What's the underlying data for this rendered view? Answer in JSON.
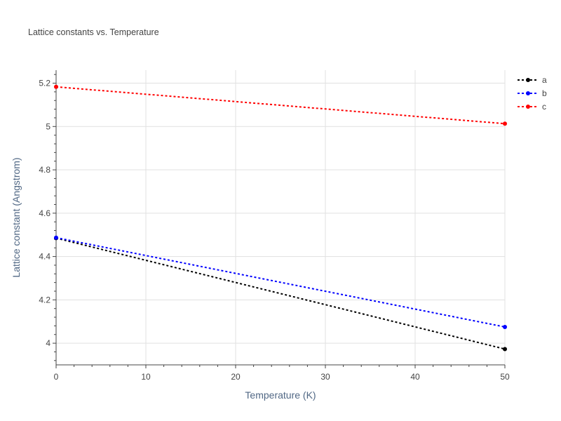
{
  "chart_data": {
    "type": "line",
    "title": "Lattice constants vs. Temperature",
    "xlabel": "Temperature (K)",
    "ylabel": "Lattice constant (Angstrom)",
    "xlim": [
      0,
      50
    ],
    "ylim": [
      3.9,
      5.26
    ],
    "x_ticks": [
      0,
      10,
      20,
      30,
      40,
      50
    ],
    "y_ticks": [
      4,
      4.2,
      4.4,
      4.6,
      4.8,
      5,
      5.2
    ],
    "x_tick_labels": [
      "0",
      "10",
      "20",
      "30",
      "40",
      "50"
    ],
    "y_tick_labels": [
      "4",
      "4.2",
      "4.4",
      "4.6",
      "4.8",
      "5",
      "5.2"
    ],
    "grid": true,
    "legend_position": "top-right",
    "series": [
      {
        "name": "a",
        "color": "#000000",
        "x": [
          0,
          50
        ],
        "values": [
          4.485,
          3.973
        ]
      },
      {
        "name": "b",
        "color": "#0000ff",
        "x": [
          0,
          50
        ],
        "values": [
          4.487,
          4.075
        ]
      },
      {
        "name": "c",
        "color": "#ff0000",
        "x": [
          0,
          50
        ],
        "values": [
          5.183,
          5.013
        ]
      }
    ]
  }
}
